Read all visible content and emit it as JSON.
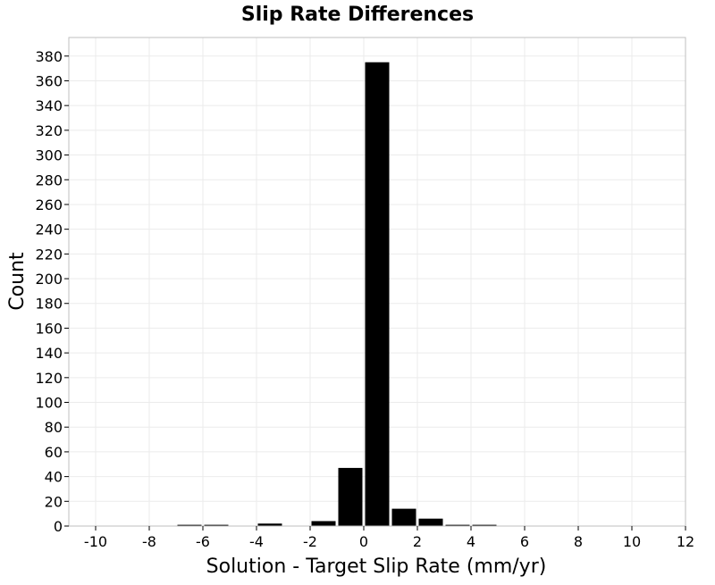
{
  "chart_data": {
    "type": "bar",
    "title": "Slip Rate Differences",
    "xlabel": "Solution - Target Slip Rate (mm/yr)",
    "ylabel": "Count",
    "xlim": [
      -11,
      12
    ],
    "ylim": [
      0,
      395
    ],
    "xticks": [
      -10,
      -8,
      -6,
      -4,
      -2,
      0,
      2,
      4,
      6,
      8,
      10,
      12
    ],
    "yticks": [
      0,
      20,
      40,
      60,
      80,
      100,
      120,
      140,
      160,
      180,
      200,
      220,
      240,
      260,
      280,
      300,
      320,
      340,
      360,
      380
    ],
    "bin_width": 1,
    "bins": [
      {
        "start": -7,
        "end": -6,
        "value": 1
      },
      {
        "start": -6,
        "end": -5,
        "value": 1
      },
      {
        "start": -4,
        "end": -3,
        "value": 2
      },
      {
        "start": -2,
        "end": -1,
        "value": 4
      },
      {
        "start": -1,
        "end": 0,
        "value": 47
      },
      {
        "start": 0,
        "end": 1,
        "value": 375
      },
      {
        "start": 1,
        "end": 2,
        "value": 14
      },
      {
        "start": 2,
        "end": 3,
        "value": 6
      },
      {
        "start": 3,
        "end": 4,
        "value": 1
      },
      {
        "start": 4,
        "end": 5,
        "value": 1
      }
    ],
    "grid": true,
    "legend": "none",
    "colors": {
      "bar": "#000000",
      "grid": "#ebebeb",
      "frame": "#bfbfbf",
      "background": "#ffffff"
    }
  }
}
